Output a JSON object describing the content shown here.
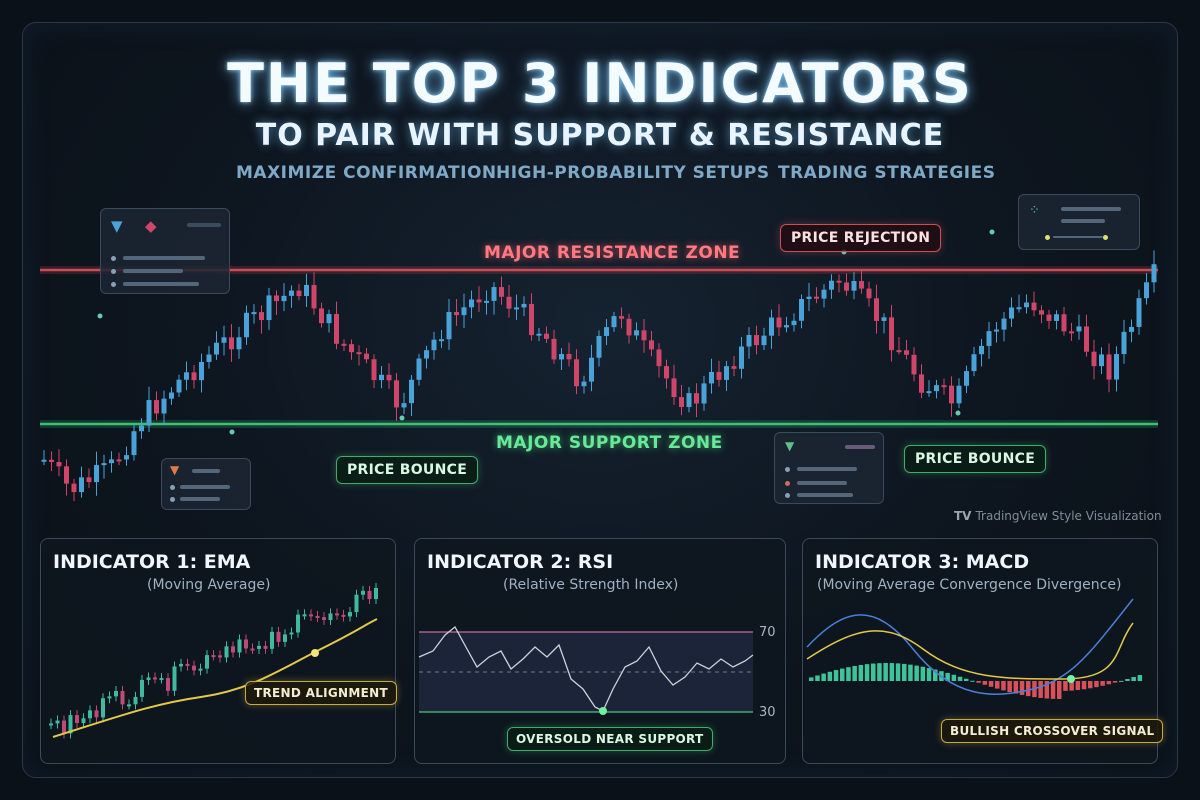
{
  "header": {
    "title": "THE TOP 3 INDICATORS",
    "subtitle": "TO PAIR WITH SUPPORT & RESISTANCE",
    "taglines": [
      "MAXIMIZE CONFIRMATION",
      "HIGH-PROBABILITY SETUPS",
      "TRADING STRATEGIES"
    ]
  },
  "main_chart": {
    "resistance_label": "MAJOR RESISTANCE ZONE",
    "support_label": "MAJOR SUPPORT ZONE",
    "callouts": {
      "rejection": "PRICE REJECTION",
      "bounce_left": "PRICE BOUNCE",
      "bounce_right": "PRICE BOUNCE"
    },
    "watermark_logo": "TV",
    "watermark": "TradingView Style Visualization",
    "colors": {
      "bull": "#4aa3d8",
      "bear": "#d0456a",
      "resistance": "#e0505a",
      "support": "#3fd17a"
    }
  },
  "indicators": [
    {
      "title": "INDICATOR 1: EMA",
      "subtitle": "(Moving Average)",
      "callout": "TREND ALIGNMENT"
    },
    {
      "title": "INDICATOR 2: RSI",
      "subtitle": "(Relative Strength Index)",
      "callout": "OVERSOLD NEAR SUPPORT",
      "upper_level": "70",
      "lower_level": "30"
    },
    {
      "title": "INDICATOR 3: MACD",
      "subtitle": "(Moving Average Convergence Divergence)",
      "callout": "BULLISH CROSSOVER SIGNAL"
    }
  ]
}
